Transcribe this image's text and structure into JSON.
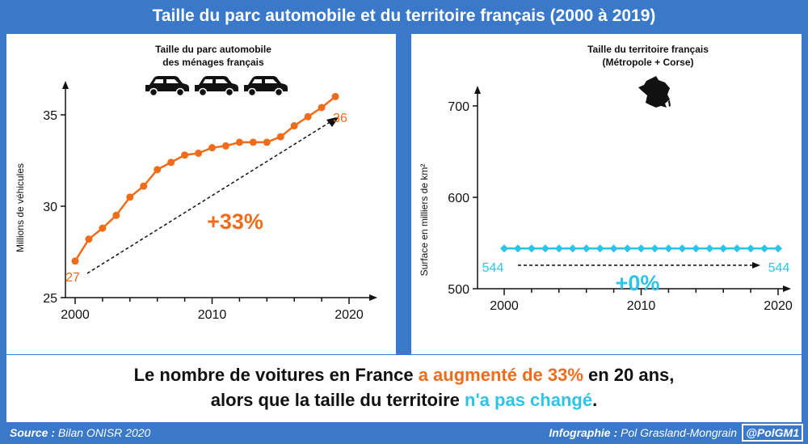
{
  "title": "Taille du parc automobile et du territoire français (2000 à 2019)",
  "conclusion": {
    "line1_a": "Le nombre de voitures en France ",
    "line1_b": "a augmenté de 33%",
    "line1_c": " en 20 ans,",
    "line2_a": "alors que la taille du territoire ",
    "line2_b": "n'a pas changé",
    "line2_c": "."
  },
  "footer": {
    "source_label": "Source :",
    "source_value": " Bilan ONISR 2020",
    "credit_label": "Infographie :",
    "credit_value": " Pol Grasland-Mongrain",
    "handle": "@PolGM1"
  },
  "colors": {
    "orange": "#ef6c1a",
    "cyan": "#2ec4ea",
    "frame": "#3a79c9"
  },
  "chart_data": [
    {
      "type": "line",
      "title": "Taille du parc automobile",
      "subtitle": "des ménages français",
      "ylabel": "Millions de véhicules",
      "xlabel": "",
      "xlim": [
        1999,
        2021
      ],
      "ylim": [
        25,
        37
      ],
      "xticks": [
        2000,
        2010,
        2020
      ],
      "yticks": [
        25,
        30,
        35
      ],
      "icons": [
        "car-icon",
        "car-icon",
        "car-icon"
      ],
      "series": [
        {
          "x": [
            2000,
            2001,
            2002,
            2003,
            2004,
            2005,
            2006,
            2007,
            2008,
            2009,
            2010,
            2011,
            2012,
            2013,
            2014,
            2015,
            2016,
            2017,
            2018,
            2019
          ],
          "values": [
            27.0,
            28.2,
            28.8,
            29.5,
            30.5,
            31.1,
            32.0,
            32.4,
            32.8,
            32.9,
            33.2,
            33.3,
            33.5,
            33.5,
            33.5,
            33.8,
            34.4,
            34.9,
            35.4,
            36.0
          ]
        }
      ],
      "annotations": {
        "start_label": "27",
        "end_label": "36",
        "change_label": "+33%"
      }
    },
    {
      "type": "line",
      "title": "Taille du territoire français",
      "subtitle": "(Métropole + Corse)",
      "ylabel": "Surface en milliers de km²",
      "xlabel": "",
      "xlim": [
        1999,
        2021
      ],
      "ylim": [
        490,
        720
      ],
      "xticks": [
        2000,
        2010,
        2020
      ],
      "yticks": [
        500,
        600,
        700
      ],
      "icons": [
        "france-map-icon"
      ],
      "series": [
        {
          "x": [
            2000,
            2001,
            2002,
            2003,
            2004,
            2005,
            2006,
            2007,
            2008,
            2009,
            2010,
            2011,
            2012,
            2013,
            2014,
            2015,
            2016,
            2017,
            2018,
            2019,
            2020
          ],
          "values": [
            544,
            544,
            544,
            544,
            544,
            544,
            544,
            544,
            544,
            544,
            544,
            544,
            544,
            544,
            544,
            544,
            544,
            544,
            544,
            544,
            544
          ]
        }
      ],
      "annotations": {
        "start_label": "544",
        "end_label": "544",
        "change_label": "+0%"
      }
    }
  ]
}
